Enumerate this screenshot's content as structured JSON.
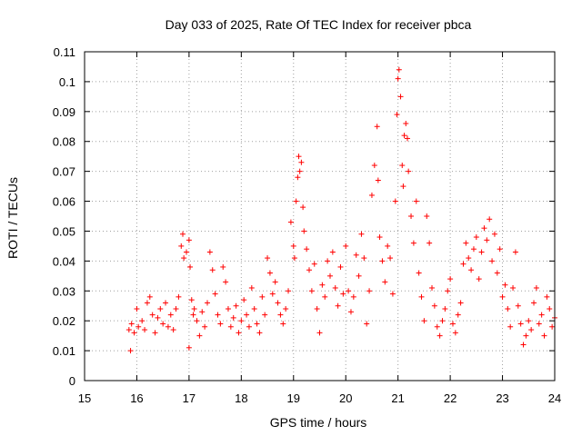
{
  "chart_data": {
    "type": "scatter",
    "title": "Day 033 of 2025, Rate Of TEC Index for receiver pbca",
    "xlabel": "GPS time / hours",
    "ylabel": "ROTI / TECUs",
    "xlim": [
      15,
      24
    ],
    "ylim": [
      0,
      0.11
    ],
    "xticks": [
      15,
      16,
      17,
      18,
      19,
      20,
      21,
      22,
      23,
      24
    ],
    "yticks": [
      0,
      0.01,
      0.02,
      0.03,
      0.04,
      0.05,
      0.06,
      0.07,
      0.08,
      0.09,
      0.1,
      0.11
    ],
    "ytick_labels": [
      "0",
      "0.01",
      "0.02",
      "0.03",
      "0.04",
      "0.05",
      "0.06",
      "0.07",
      "0.08",
      "0.09",
      "0.1",
      "0.11"
    ],
    "grid": true,
    "marker": "+",
    "color": "#ff0000",
    "series": [
      {
        "name": "ROTI",
        "points": [
          [
            15.85,
            0.017
          ],
          [
            15.88,
            0.01
          ],
          [
            15.9,
            0.019
          ],
          [
            15.95,
            0.016
          ],
          [
            16.0,
            0.024
          ],
          [
            16.03,
            0.018
          ],
          [
            16.1,
            0.02
          ],
          [
            16.15,
            0.017
          ],
          [
            16.2,
            0.026
          ],
          [
            16.25,
            0.028
          ],
          [
            16.3,
            0.022
          ],
          [
            16.35,
            0.016
          ],
          [
            16.4,
            0.021
          ],
          [
            16.45,
            0.024
          ],
          [
            16.5,
            0.019
          ],
          [
            16.55,
            0.026
          ],
          [
            16.6,
            0.018
          ],
          [
            16.65,
            0.022
          ],
          [
            16.7,
            0.017
          ],
          [
            16.75,
            0.024
          ],
          [
            16.8,
            0.028
          ],
          [
            16.85,
            0.045
          ],
          [
            16.88,
            0.049
          ],
          [
            16.9,
            0.041
          ],
          [
            16.95,
            0.043
          ],
          [
            17.0,
            0.047
          ],
          [
            17.02,
            0.038
          ],
          [
            17.05,
            0.027
          ],
          [
            17.08,
            0.022
          ],
          [
            17.0,
            0.011
          ],
          [
            17.1,
            0.024
          ],
          [
            17.15,
            0.02
          ],
          [
            17.2,
            0.015
          ],
          [
            17.25,
            0.023
          ],
          [
            17.3,
            0.018
          ],
          [
            17.35,
            0.026
          ],
          [
            17.4,
            0.043
          ],
          [
            17.45,
            0.037
          ],
          [
            17.5,
            0.029
          ],
          [
            17.55,
            0.022
          ],
          [
            17.6,
            0.019
          ],
          [
            17.65,
            0.038
          ],
          [
            17.7,
            0.033
          ],
          [
            17.75,
            0.024
          ],
          [
            17.8,
            0.018
          ],
          [
            17.85,
            0.021
          ],
          [
            17.9,
            0.025
          ],
          [
            17.95,
            0.016
          ],
          [
            18.0,
            0.02
          ],
          [
            18.05,
            0.027
          ],
          [
            18.1,
            0.022
          ],
          [
            18.15,
            0.018
          ],
          [
            18.2,
            0.031
          ],
          [
            18.25,
            0.024
          ],
          [
            18.3,
            0.019
          ],
          [
            18.35,
            0.016
          ],
          [
            18.4,
            0.028
          ],
          [
            18.45,
            0.022
          ],
          [
            18.5,
            0.041
          ],
          [
            18.55,
            0.036
          ],
          [
            18.6,
            0.029
          ],
          [
            18.65,
            0.033
          ],
          [
            18.7,
            0.026
          ],
          [
            18.75,
            0.022
          ],
          [
            18.8,
            0.019
          ],
          [
            18.85,
            0.024
          ],
          [
            18.9,
            0.03
          ],
          [
            18.95,
            0.053
          ],
          [
            19.0,
            0.045
          ],
          [
            19.02,
            0.041
          ],
          [
            19.05,
            0.06
          ],
          [
            19.08,
            0.068
          ],
          [
            19.1,
            0.075
          ],
          [
            19.12,
            0.07
          ],
          [
            19.15,
            0.073
          ],
          [
            19.18,
            0.058
          ],
          [
            19.2,
            0.05
          ],
          [
            19.25,
            0.044
          ],
          [
            19.3,
            0.037
          ],
          [
            19.35,
            0.03
          ],
          [
            19.4,
            0.039
          ],
          [
            19.45,
            0.024
          ],
          [
            19.5,
            0.016
          ],
          [
            19.55,
            0.032
          ],
          [
            19.6,
            0.028
          ],
          [
            19.65,
            0.04
          ],
          [
            19.7,
            0.035
          ],
          [
            19.75,
            0.043
          ],
          [
            19.8,
            0.031
          ],
          [
            19.85,
            0.025
          ],
          [
            19.9,
            0.038
          ],
          [
            19.95,
            0.029
          ],
          [
            20.0,
            0.045
          ],
          [
            20.05,
            0.03
          ],
          [
            20.1,
            0.023
          ],
          [
            20.15,
            0.028
          ],
          [
            20.2,
            0.042
          ],
          [
            20.25,
            0.035
          ],
          [
            20.3,
            0.049
          ],
          [
            20.35,
            0.041
          ],
          [
            20.4,
            0.019
          ],
          [
            20.45,
            0.03
          ],
          [
            20.5,
            0.062
          ],
          [
            20.55,
            0.072
          ],
          [
            20.6,
            0.085
          ],
          [
            20.62,
            0.067
          ],
          [
            20.65,
            0.048
          ],
          [
            20.7,
            0.04
          ],
          [
            20.75,
            0.033
          ],
          [
            20.8,
            0.045
          ],
          [
            20.85,
            0.041
          ],
          [
            20.9,
            0.029
          ],
          [
            20.95,
            0.06
          ],
          [
            20.98,
            0.089
          ],
          [
            21.0,
            0.101
          ],
          [
            21.02,
            0.104
          ],
          [
            21.05,
            0.095
          ],
          [
            21.08,
            0.072
          ],
          [
            21.1,
            0.065
          ],
          [
            21.12,
            0.082
          ],
          [
            21.15,
            0.086
          ],
          [
            21.18,
            0.081
          ],
          [
            21.2,
            0.07
          ],
          [
            21.25,
            0.055
          ],
          [
            21.3,
            0.046
          ],
          [
            21.35,
            0.06
          ],
          [
            21.4,
            0.036
          ],
          [
            21.45,
            0.028
          ],
          [
            21.5,
            0.02
          ],
          [
            21.55,
            0.055
          ],
          [
            21.6,
            0.046
          ],
          [
            21.65,
            0.031
          ],
          [
            21.7,
            0.025
          ],
          [
            21.75,
            0.018
          ],
          [
            21.8,
            0.015
          ],
          [
            21.85,
            0.02
          ],
          [
            21.9,
            0.024
          ],
          [
            21.95,
            0.03
          ],
          [
            22.0,
            0.034
          ],
          [
            22.05,
            0.019
          ],
          [
            22.1,
            0.016
          ],
          [
            22.15,
            0.022
          ],
          [
            22.2,
            0.026
          ],
          [
            22.25,
            0.039
          ],
          [
            22.3,
            0.046
          ],
          [
            22.35,
            0.041
          ],
          [
            22.4,
            0.037
          ],
          [
            22.45,
            0.044
          ],
          [
            22.5,
            0.048
          ],
          [
            22.55,
            0.034
          ],
          [
            22.6,
            0.043
          ],
          [
            22.65,
            0.051
          ],
          [
            22.7,
            0.047
          ],
          [
            22.75,
            0.054
          ],
          [
            22.8,
            0.04
          ],
          [
            22.85,
            0.049
          ],
          [
            22.9,
            0.036
          ],
          [
            22.95,
            0.044
          ],
          [
            23.0,
            0.028
          ],
          [
            23.05,
            0.032
          ],
          [
            23.1,
            0.024
          ],
          [
            23.15,
            0.018
          ],
          [
            23.2,
            0.031
          ],
          [
            23.25,
            0.043
          ],
          [
            23.3,
            0.025
          ],
          [
            23.35,
            0.019
          ],
          [
            23.4,
            0.012
          ],
          [
            23.45,
            0.015
          ],
          [
            23.5,
            0.02
          ],
          [
            23.55,
            0.017
          ],
          [
            23.6,
            0.026
          ],
          [
            23.65,
            0.031
          ],
          [
            23.7,
            0.019
          ],
          [
            23.75,
            0.022
          ],
          [
            23.8,
            0.015
          ],
          [
            23.85,
            0.028
          ],
          [
            23.9,
            0.024
          ],
          [
            23.95,
            0.018
          ],
          [
            24.0,
            0.021
          ]
        ]
      }
    ]
  }
}
